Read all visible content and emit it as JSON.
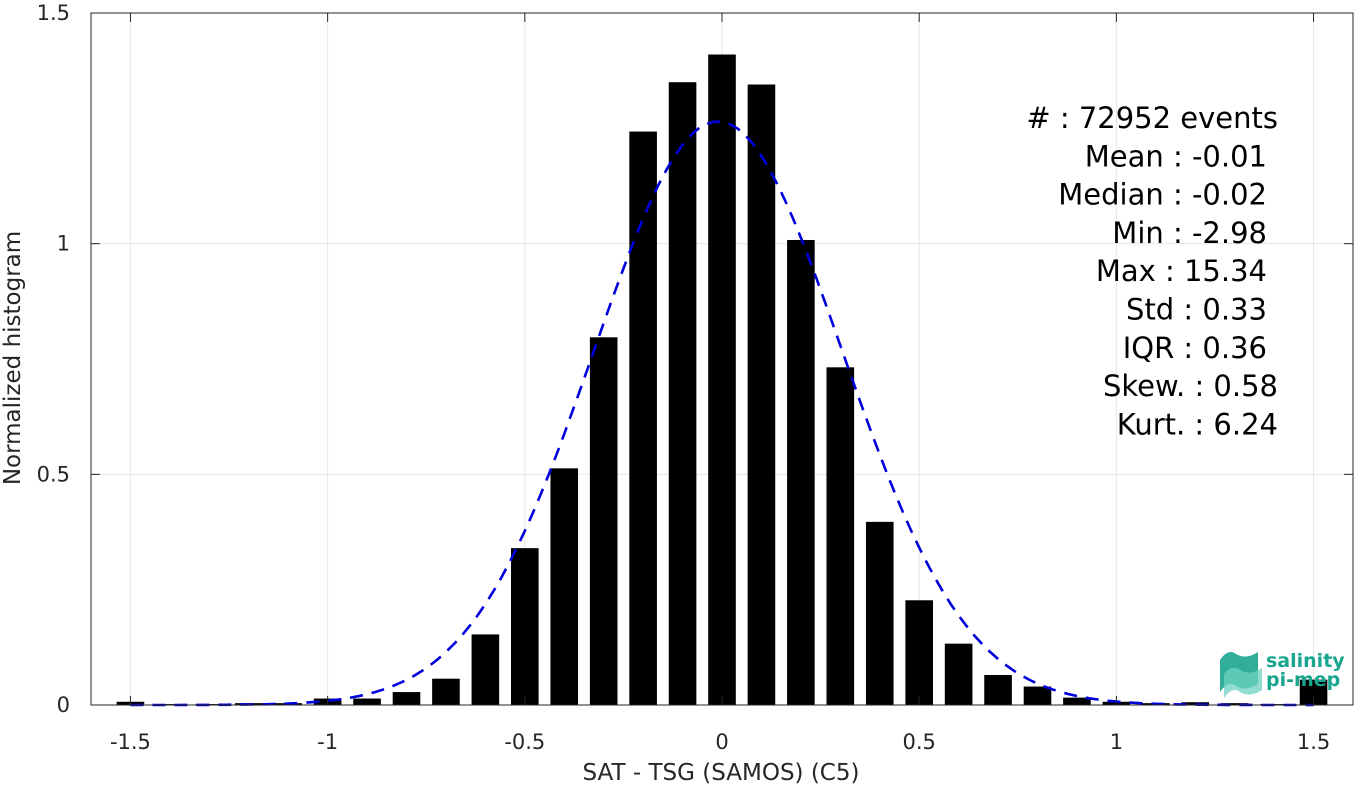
{
  "chart_data": {
    "type": "bar",
    "xlabel": "SAT - TSG (SAMOS) (C5)",
    "ylabel": "Normalized histogram",
    "xlim": [
      -1.6,
      1.6
    ],
    "ylim": [
      0,
      1.5
    ],
    "xticks": [
      -1.5,
      -1,
      -0.5,
      0,
      0.5,
      1,
      1.5
    ],
    "xtick_labels": [
      "-1.5",
      "-1",
      "-0.5",
      "0",
      "0.5",
      "1",
      "1.5"
    ],
    "yticks": [
      0,
      0.5,
      1,
      1.5
    ],
    "ytick_labels": [
      "0",
      "0.5",
      "1",
      "1.5"
    ],
    "grid": true,
    "bar_width": 0.07,
    "bars": [
      {
        "x": -1.5,
        "y": 0.007
      },
      {
        "x": -1.4,
        "y": 0.002
      },
      {
        "x": -1.3,
        "y": 0.002
      },
      {
        "x": -1.2,
        "y": 0.004
      },
      {
        "x": -1.1,
        "y": 0.004
      },
      {
        "x": -1.0,
        "y": 0.014
      },
      {
        "x": -0.9,
        "y": 0.014
      },
      {
        "x": -0.8,
        "y": 0.028
      },
      {
        "x": -0.7,
        "y": 0.057
      },
      {
        "x": -0.6,
        "y": 0.153
      },
      {
        "x": -0.5,
        "y": 0.34
      },
      {
        "x": -0.4,
        "y": 0.513
      },
      {
        "x": -0.3,
        "y": 0.797
      },
      {
        "x": -0.2,
        "y": 1.243
      },
      {
        "x": -0.1,
        "y": 1.35
      },
      {
        "x": 0.0,
        "y": 1.41
      },
      {
        "x": 0.1,
        "y": 1.345
      },
      {
        "x": 0.2,
        "y": 1.008
      },
      {
        "x": 0.3,
        "y": 0.732
      },
      {
        "x": 0.4,
        "y": 0.397
      },
      {
        "x": 0.5,
        "y": 0.227
      },
      {
        "x": 0.6,
        "y": 0.133
      },
      {
        "x": 0.7,
        "y": 0.065
      },
      {
        "x": 0.8,
        "y": 0.04
      },
      {
        "x": 0.9,
        "y": 0.016
      },
      {
        "x": 1.0,
        "y": 0.007
      },
      {
        "x": 1.1,
        "y": 0.004
      },
      {
        "x": 1.2,
        "y": 0.006
      },
      {
        "x": 1.3,
        "y": 0.004
      },
      {
        "x": 1.4,
        "y": 0.002
      },
      {
        "x": 1.5,
        "y": 0.055
      }
    ],
    "fit_curve": {
      "style": "dashed",
      "color": "#0000dd",
      "mean": -0.01,
      "std": 0.315,
      "peak": 1.265,
      "x_range": [
        -1.5,
        1.5
      ]
    },
    "bar_color": "#000000",
    "stats_lines": [
      "#  : 72952 events",
      "Mean : -0.01",
      "Median : -0.02",
      "Min : -2.98",
      "Max : 15.34",
      "Std : 0.33",
      "IQR : 0.36",
      "Skew. : 0.58",
      "Kurt. : 6.24"
    ]
  },
  "logo": {
    "line1": "salinity",
    "line2": "pi-mep",
    "color": "#1aa58f"
  }
}
